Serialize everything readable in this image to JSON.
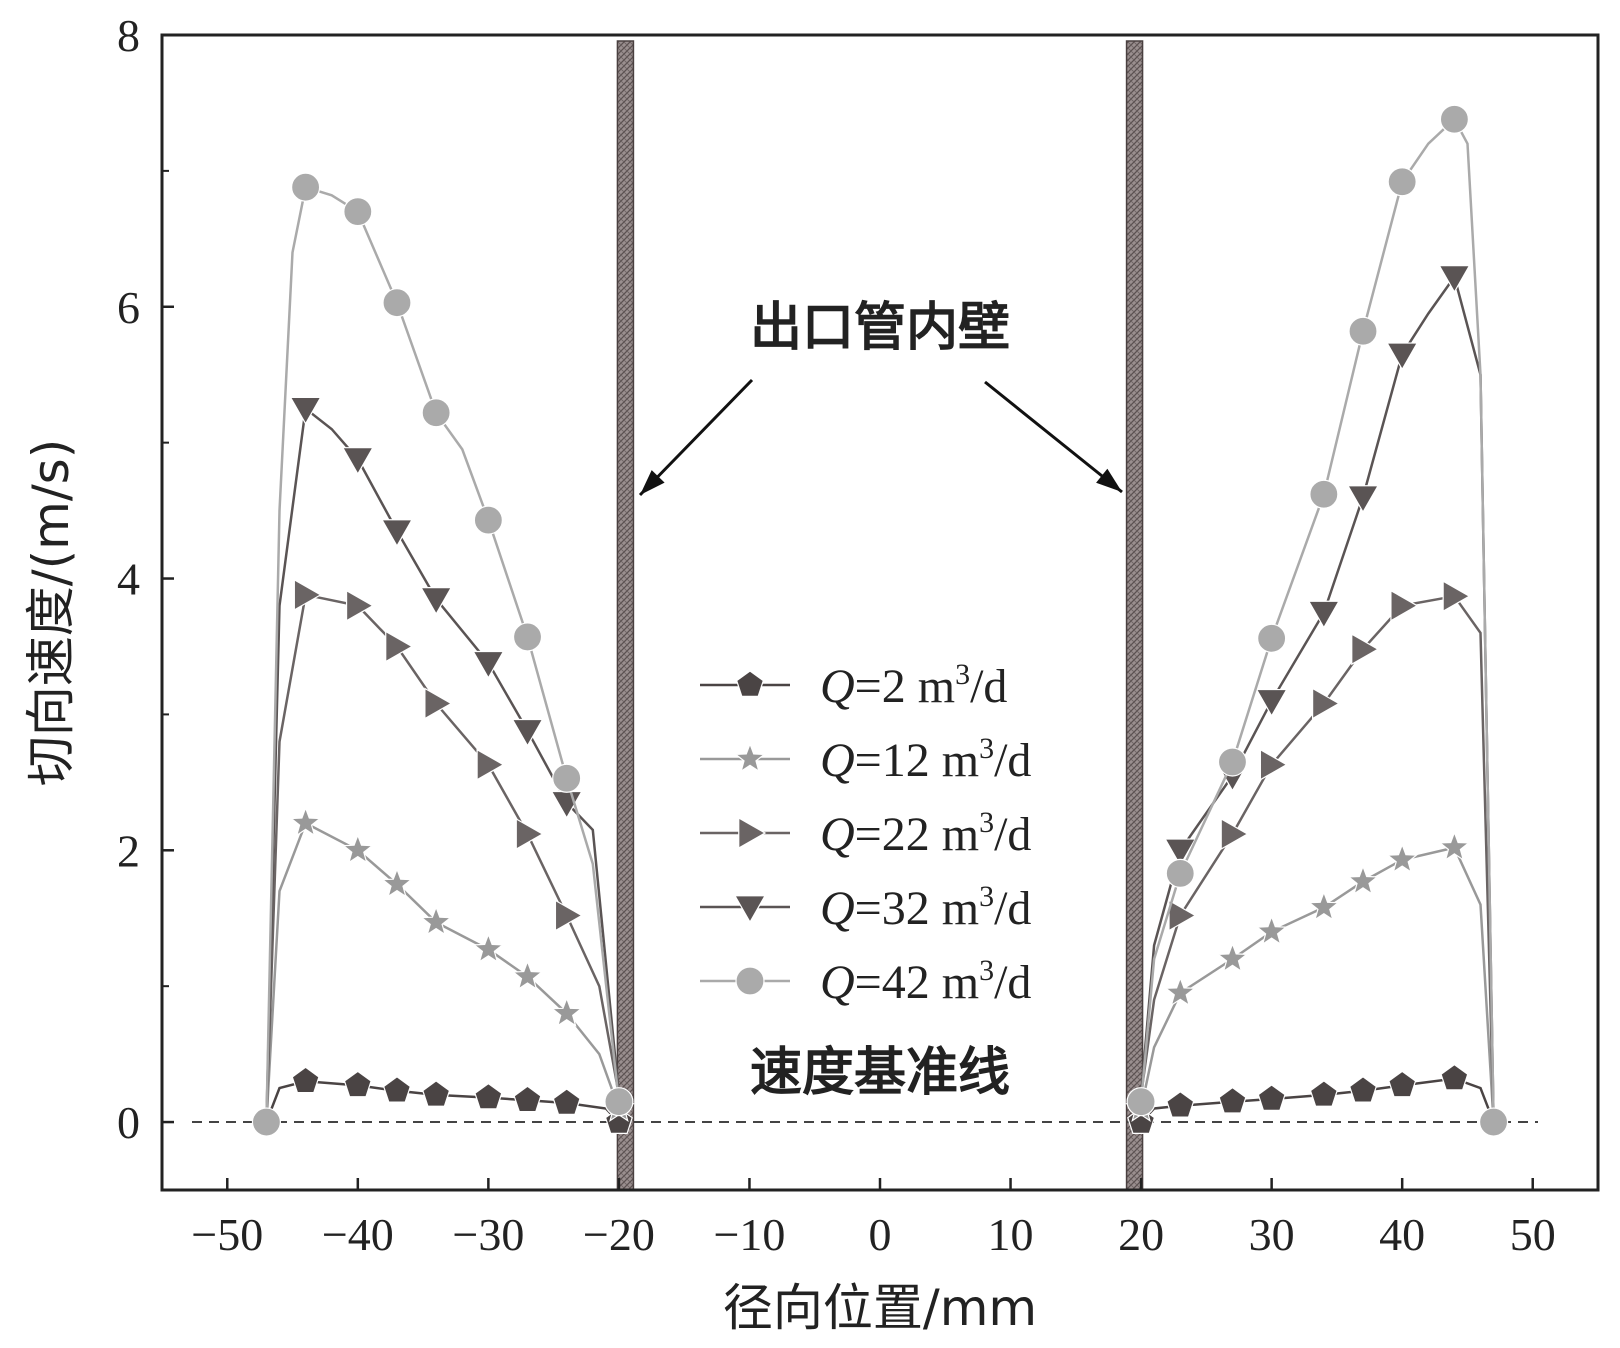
{
  "chart_data": {
    "type": "line",
    "xlabel": "径向位置/mm",
    "ylabel": "切向速度/(m/s)",
    "xlim": [
      -55,
      55
    ],
    "ylim": [
      -0.5,
      8
    ],
    "xticks": [
      "−50",
      "−40",
      "−30",
      "−20",
      "−10",
      "0",
      "10",
      "20",
      "30",
      "40",
      "50"
    ],
    "yticks": [
      "0",
      "2",
      "4",
      "6",
      "8"
    ],
    "grid": false,
    "legend_position": "center",
    "annotations": {
      "wall_label": "出口管内壁",
      "baseline_label": "速度基准线",
      "wall_positions_mm": [
        -19.5,
        19.5
      ],
      "baseline_value": 0
    },
    "colors": {
      "q2": "#4a4444",
      "q12": "#999999",
      "q22": "#6a6464",
      "q32": "#5a5454",
      "q42": "#aaaaaa",
      "wall": "#8a8080",
      "axis": "#222222"
    },
    "series": [
      {
        "name": "Q=2 m3/d",
        "label_q": "Q",
        "label_eq": "=2 m",
        "label_sup": "3",
        "label_tail": "/d",
        "color": "q2",
        "marker": "pentagon",
        "line": [
          [
            -47,
            0
          ],
          [
            -46,
            0.25
          ],
          [
            -44,
            0.3
          ],
          [
            -40,
            0.27
          ],
          [
            -37,
            0.23
          ],
          [
            -34,
            0.2
          ],
          [
            -30,
            0.18
          ],
          [
            -27,
            0.16
          ],
          [
            -24,
            0.14
          ],
          [
            -21,
            0.1
          ],
          [
            -20,
            0.0
          ],
          [
            20,
            0.0
          ],
          [
            21,
            0.1
          ],
          [
            23,
            0.12
          ],
          [
            27,
            0.15
          ],
          [
            30,
            0.17
          ],
          [
            34,
            0.2
          ],
          [
            37,
            0.23
          ],
          [
            40,
            0.27
          ],
          [
            44,
            0.32
          ],
          [
            46,
            0.25
          ],
          [
            47,
            0
          ]
        ],
        "markers": [
          [
            -47,
            0
          ],
          [
            -44,
            0.3
          ],
          [
            -40,
            0.27
          ],
          [
            -37,
            0.23
          ],
          [
            -34,
            0.2
          ],
          [
            -30,
            0.18
          ],
          [
            -27,
            0.16
          ],
          [
            -24,
            0.14
          ],
          [
            -20,
            0.0
          ],
          [
            20,
            0.0
          ],
          [
            23,
            0.12
          ],
          [
            27,
            0.15
          ],
          [
            30,
            0.17
          ],
          [
            34,
            0.2
          ],
          [
            37,
            0.23
          ],
          [
            40,
            0.27
          ],
          [
            44,
            0.32
          ],
          [
            47,
            0
          ]
        ]
      },
      {
        "name": "Q=12 m3/d",
        "label_q": "Q",
        "label_eq": "=12 m",
        "label_sup": "3",
        "label_tail": "/d",
        "color": "q12",
        "marker": "star",
        "line": [
          [
            -47,
            0
          ],
          [
            -46,
            1.7
          ],
          [
            -44,
            2.2
          ],
          [
            -40,
            2.0
          ],
          [
            -37,
            1.75
          ],
          [
            -34,
            1.47
          ],
          [
            -30,
            1.27
          ],
          [
            -27,
            1.07
          ],
          [
            -24,
            0.8
          ],
          [
            -21.5,
            0.5
          ],
          [
            -20,
            0.1
          ],
          [
            20,
            0.1
          ],
          [
            21,
            0.55
          ],
          [
            23,
            0.95
          ],
          [
            27,
            1.2
          ],
          [
            30,
            1.4
          ],
          [
            34,
            1.58
          ],
          [
            37,
            1.77
          ],
          [
            40,
            1.93
          ],
          [
            44,
            2.02
          ],
          [
            46,
            1.6
          ],
          [
            47,
            0
          ]
        ],
        "markers": [
          [
            -47,
            0
          ],
          [
            -44,
            2.2
          ],
          [
            -40,
            2.0
          ],
          [
            -37,
            1.75
          ],
          [
            -34,
            1.47
          ],
          [
            -30,
            1.27
          ],
          [
            -27,
            1.07
          ],
          [
            -24,
            0.8
          ],
          [
            -20,
            0.1
          ],
          [
            20,
            0.1
          ],
          [
            23,
            0.95
          ],
          [
            27,
            1.2
          ],
          [
            30,
            1.4
          ],
          [
            34,
            1.58
          ],
          [
            37,
            1.77
          ],
          [
            40,
            1.93
          ],
          [
            44,
            2.02
          ],
          [
            47,
            0
          ]
        ]
      },
      {
        "name": "Q=22 m3/d",
        "label_q": "Q",
        "label_eq": "=22 m",
        "label_sup": "3",
        "label_tail": "/d",
        "color": "q22",
        "marker": "triangle-right",
        "line": [
          [
            -47,
            0
          ],
          [
            -46,
            2.8
          ],
          [
            -44,
            3.88
          ],
          [
            -40,
            3.8
          ],
          [
            -37,
            3.5
          ],
          [
            -34,
            3.08
          ],
          [
            -30,
            2.63
          ],
          [
            -27,
            2.12
          ],
          [
            -24,
            1.52
          ],
          [
            -21.5,
            1.0
          ],
          [
            -20,
            0.2
          ],
          [
            20,
            0.2
          ],
          [
            21,
            0.9
          ],
          [
            23,
            1.52
          ],
          [
            27,
            2.12
          ],
          [
            30,
            2.63
          ],
          [
            34,
            3.08
          ],
          [
            37,
            3.48
          ],
          [
            40,
            3.8
          ],
          [
            44,
            3.87
          ],
          [
            46,
            3.6
          ],
          [
            47,
            0
          ]
        ],
        "markers": [
          [
            -44,
            3.88
          ],
          [
            -40,
            3.8
          ],
          [
            -37,
            3.5
          ],
          [
            -34,
            3.08
          ],
          [
            -30,
            2.63
          ],
          [
            -27,
            2.12
          ],
          [
            -24,
            1.52
          ],
          [
            23,
            1.52
          ],
          [
            27,
            2.12
          ],
          [
            30,
            2.63
          ],
          [
            34,
            3.08
          ],
          [
            37,
            3.48
          ],
          [
            40,
            3.8
          ],
          [
            44,
            3.87
          ]
        ]
      },
      {
        "name": "Q=32 m3/d",
        "label_q": "Q",
        "label_eq": "=32 m",
        "label_sup": "3",
        "label_tail": "/d",
        "color": "q32",
        "marker": "triangle-down",
        "line": [
          [
            -47,
            0
          ],
          [
            -46,
            3.8
          ],
          [
            -44,
            5.25
          ],
          [
            -42,
            5.1
          ],
          [
            -40,
            4.88
          ],
          [
            -37,
            4.35
          ],
          [
            -34,
            3.85
          ],
          [
            -30,
            3.38
          ],
          [
            -27,
            2.88
          ],
          [
            -24,
            2.35
          ],
          [
            -22,
            2.15
          ],
          [
            -20,
            0.2
          ],
          [
            20,
            0.2
          ],
          [
            21,
            1.3
          ],
          [
            23,
            2.0
          ],
          [
            27,
            2.55
          ],
          [
            30,
            3.1
          ],
          [
            34,
            3.75
          ],
          [
            37,
            4.6
          ],
          [
            40,
            5.65
          ],
          [
            42,
            5.95
          ],
          [
            44,
            6.22
          ],
          [
            46,
            5.5
          ],
          [
            47,
            0
          ]
        ],
        "markers": [
          [
            -44,
            5.25
          ],
          [
            -40,
            4.88
          ],
          [
            -37,
            4.35
          ],
          [
            -34,
            3.85
          ],
          [
            -30,
            3.38
          ],
          [
            -27,
            2.88
          ],
          [
            -24,
            2.35
          ],
          [
            23,
            2.0
          ],
          [
            27,
            2.55
          ],
          [
            30,
            3.1
          ],
          [
            34,
            3.75
          ],
          [
            37,
            4.6
          ],
          [
            40,
            5.65
          ],
          [
            44,
            6.22
          ]
        ]
      },
      {
        "name": "Q=42 m3/d",
        "label_q": "Q",
        "label_eq": "=42 m",
        "label_sup": "3",
        "label_tail": "/d",
        "color": "q42",
        "marker": "circle",
        "line": [
          [
            -47,
            0
          ],
          [
            -46,
            4.5
          ],
          [
            -45,
            6.4
          ],
          [
            -44,
            6.88
          ],
          [
            -42,
            6.82
          ],
          [
            -40,
            6.7
          ],
          [
            -37,
            6.03
          ],
          [
            -34,
            5.22
          ],
          [
            -32,
            4.95
          ],
          [
            -30,
            4.43
          ],
          [
            -27,
            3.57
          ],
          [
            -24,
            2.53
          ],
          [
            -22,
            1.9
          ],
          [
            -20,
            0.15
          ],
          [
            20,
            0.15
          ],
          [
            21,
            1.2
          ],
          [
            23,
            1.83
          ],
          [
            27,
            2.65
          ],
          [
            30,
            3.56
          ],
          [
            34,
            4.62
          ],
          [
            37,
            5.82
          ],
          [
            40,
            6.92
          ],
          [
            42,
            7.2
          ],
          [
            44,
            7.38
          ],
          [
            45,
            7.2
          ],
          [
            46,
            5.5
          ],
          [
            47,
            0
          ]
        ],
        "markers": [
          [
            -47,
            0
          ],
          [
            -44,
            6.88
          ],
          [
            -40,
            6.7
          ],
          [
            -37,
            6.03
          ],
          [
            -34,
            5.22
          ],
          [
            -30,
            4.43
          ],
          [
            -27,
            3.57
          ],
          [
            -24,
            2.53
          ],
          [
            -20,
            0.15
          ],
          [
            20,
            0.15
          ],
          [
            23,
            1.83
          ],
          [
            27,
            2.65
          ],
          [
            30,
            3.56
          ],
          [
            34,
            4.62
          ],
          [
            37,
            5.82
          ],
          [
            40,
            6.92
          ],
          [
            44,
            7.38
          ],
          [
            47,
            0
          ]
        ]
      }
    ]
  }
}
